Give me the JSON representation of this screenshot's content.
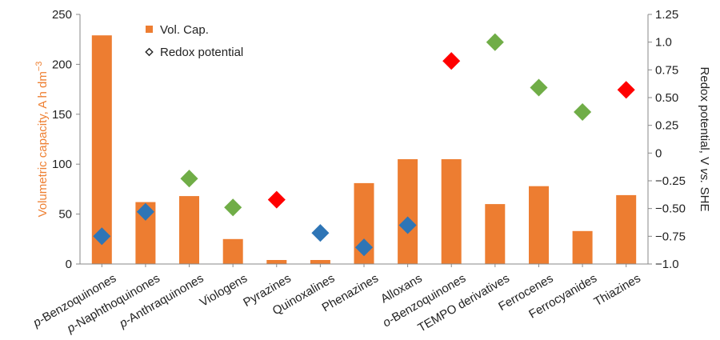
{
  "chart_data": {
    "type": "bar",
    "categories": [
      {
        "prefix": "p-",
        "name": "Benzoquinones"
      },
      {
        "prefix": "p-",
        "name": "Naphthoquinones"
      },
      {
        "prefix": "p-",
        "name": "Anthraquinones"
      },
      {
        "prefix": "",
        "name": "Viologens"
      },
      {
        "prefix": "",
        "name": "Pyrazines"
      },
      {
        "prefix": "",
        "name": "Quinoxalines"
      },
      {
        "prefix": "",
        "name": "Phenazines"
      },
      {
        "prefix": "",
        "name": "Alloxans"
      },
      {
        "prefix": "o-",
        "name": "Benzoquinones"
      },
      {
        "prefix": "",
        "name": "TEMPO derivatives"
      },
      {
        "prefix": "",
        "name": "Ferrocenes"
      },
      {
        "prefix": "",
        "name": "Ferrocyanides"
      },
      {
        "prefix": "",
        "name": "Thiazines"
      }
    ],
    "series": [
      {
        "name": "Vol. Cap.",
        "axis": "left",
        "values": [
          229,
          62,
          68,
          25,
          4,
          4,
          81,
          105,
          105,
          60,
          78,
          33,
          69
        ]
      },
      {
        "name": "Redox potential",
        "axis": "right",
        "values": [
          -0.75,
          -0.53,
          -0.23,
          -0.49,
          -0.42,
          -0.72,
          -0.85,
          -0.65,
          0.83,
          1.0,
          0.59,
          0.37,
          0.57
        ]
      }
    ],
    "marker_colors": [
      "#2e75b6",
      "#2e75b6",
      "#70ad47",
      "#70ad47",
      "#ff0000",
      "#2e75b6",
      "#2e75b6",
      "#2e75b6",
      "#ff0000",
      "#70ad47",
      "#70ad47",
      "#70ad47",
      "#ff0000"
    ],
    "bar_color": "#ed7d31",
    "ylabel_left": "Volumetric capacity, A h dm",
    "ylabel_left_sup": "−3",
    "ylabel_right_prefix": "Redox potential, V ",
    "ylabel_right_italic": "vs.",
    "ylabel_right_suffix": " SHE",
    "ylim_left": [
      0,
      250
    ],
    "yticks_left": [
      "0",
      "50",
      "100",
      "150",
      "200",
      "250"
    ],
    "ylim_right": [
      -1.0,
      1.25
    ],
    "yticks_right": [
      "−1.0",
      "−0.75",
      "−0.50",
      "−0.25",
      "0",
      "0.25",
      "0.50",
      "0.75",
      "1.0",
      "1.25"
    ],
    "legend": {
      "position": "top-left",
      "bar_label": "Vol. Cap.",
      "marker_label": "Redox potential"
    },
    "grid": false
  }
}
